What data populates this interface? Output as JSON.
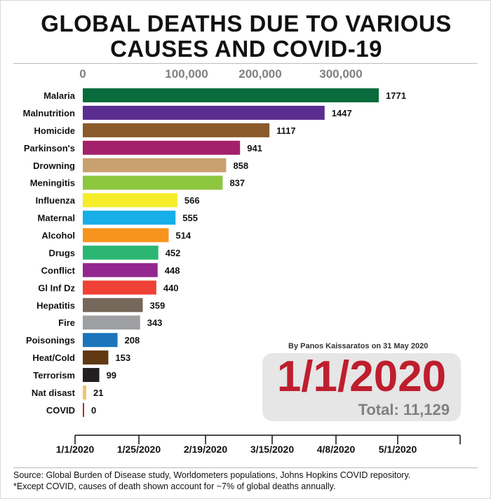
{
  "chart_data": {
    "type": "bar",
    "title": "GLOBAL DEATHS DUE TO VARIOUS CAUSES AND COVID-19",
    "title_lines": [
      "GLOBAL DEATHS DUE TO VARIOUS",
      "CAUSES AND COVID-19"
    ],
    "x_ticks": [
      "0",
      "100,000",
      "200,000",
      "300,000"
    ],
    "categories": [
      "Malaria",
      "Malnutrition",
      "Homicide",
      "Parkinson's",
      "Drowning",
      "Meningitis",
      "Influenza",
      "Maternal",
      "Alcohol",
      "Drugs",
      "Conflict",
      "Gl Inf Dz",
      "Hepatitis",
      "Fire",
      "Poisonings",
      "Heat/Cold",
      "Terrorism",
      "Nat disast",
      "COVID"
    ],
    "values": [
      1771,
      1447,
      1117,
      941,
      858,
      837,
      566,
      555,
      514,
      452,
      448,
      440,
      359,
      343,
      208,
      153,
      99,
      21,
      0
    ],
    "colors": [
      "#0a6b3c",
      "#5c2d91",
      "#8b5a2b",
      "#a3206a",
      "#c9a070",
      "#8dc63f",
      "#f5ec2a",
      "#18aee8",
      "#f7941d",
      "#2bb673",
      "#92278f",
      "#ef4136",
      "#75685a",
      "#9d9fa2",
      "#1b75bc",
      "#603913",
      "#231f20",
      "#f5c26b",
      "#c1272d"
    ],
    "timeline_ticks": [
      "1/1/2020",
      "1/25/2020",
      "2/19/2020",
      "3/15/2020",
      "4/8/2020",
      "5/1/2020"
    ],
    "current_date": "1/1/2020",
    "total": "Total: 11,129"
  },
  "byline": "By Panos Kaissaratos on 31 May 2020",
  "source_lines": [
    "Source: Global Burden of Disease study, Worldometers populations, Johns Hopkins COVID repository.",
    "*Except COVID, causes of death shown account for ~7% of global deaths annually."
  ]
}
